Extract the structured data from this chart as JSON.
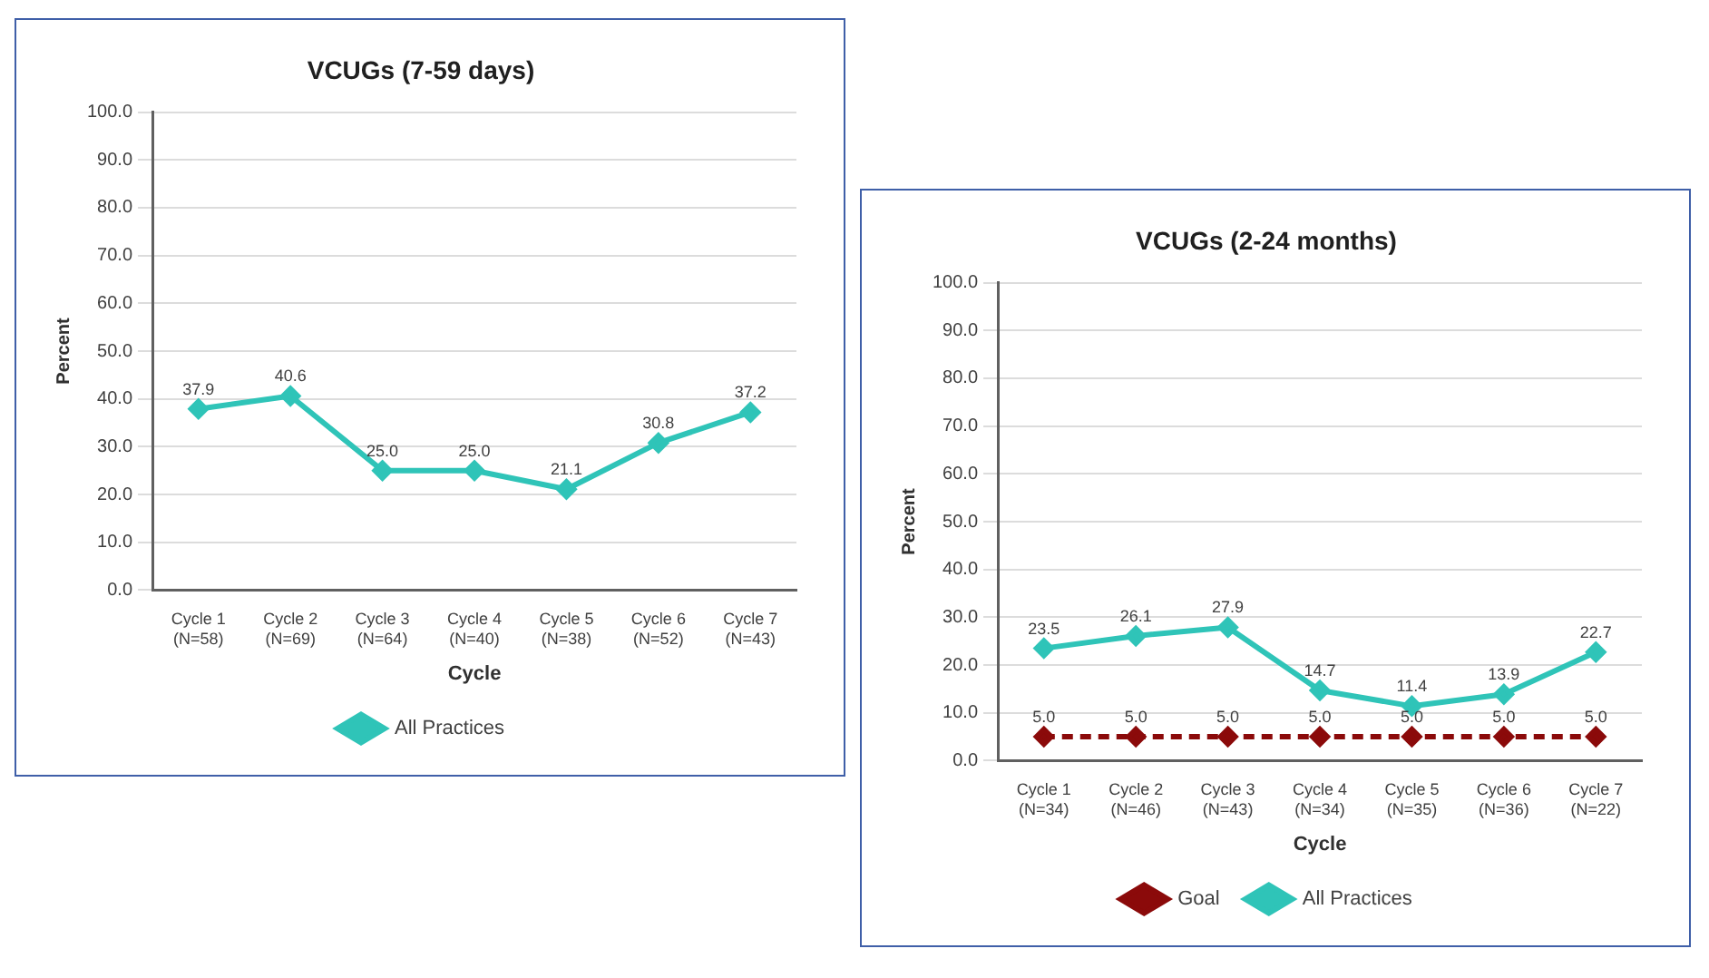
{
  "chart_data": [
    {
      "type": "line",
      "title": "VCUGs (7-59 days)",
      "xlabel": "Cycle",
      "ylabel": "Percent",
      "categories": [
        "Cycle 1\n(N=58)",
        "Cycle 2\n(N=69)",
        "Cycle 3\n(N=64)",
        "Cycle 4\n(N=40)",
        "Cycle 5\n(N=38)",
        "Cycle 6\n(N=52)",
        "Cycle 7\n(N=43)"
      ],
      "series": [
        {
          "name": "All Practices",
          "color": "#2fc4b8",
          "values": [
            37.9,
            40.6,
            25,
            25,
            21.1,
            30.8,
            37.2
          ],
          "value_labels": [
            "37.9",
            "40.6",
            "25.0",
            "25.0",
            "21.1",
            "30.8",
            "37.2"
          ],
          "line_style": "solid"
        }
      ],
      "ylim": [
        0,
        100
      ],
      "yticks": [
        {
          "value": 0,
          "label": "0.0"
        },
        {
          "value": 10,
          "label": "10.0"
        },
        {
          "value": 20,
          "label": "20.0"
        },
        {
          "value": 30,
          "label": "30.0"
        },
        {
          "value": 40,
          "label": "40.0"
        },
        {
          "value": 50,
          "label": "50.0"
        },
        {
          "value": 60,
          "label": "60.0"
        },
        {
          "value": 70,
          "label": "70.0"
        },
        {
          "value": 80,
          "label": "80.0"
        },
        {
          "value": 90,
          "label": "90.0"
        },
        {
          "value": 100,
          "label": "100.0"
        }
      ],
      "grid": "y",
      "legend": "bottom",
      "marker": "diamond"
    },
    {
      "type": "line",
      "title": "VCUGs (2-24 months)",
      "xlabel": "Cycle",
      "ylabel": "Percent",
      "categories": [
        "Cycle 1\n(N=34)",
        "Cycle 2\n(N=46)",
        "Cycle 3\n(N=43)",
        "Cycle 4\n(N=34)",
        "Cycle 5\n(N=35)",
        "Cycle 6\n(N=36)",
        "Cycle 7\n(N=22)"
      ],
      "series": [
        {
          "name": "Goal",
          "color": "#8b0a0a",
          "values": [
            5,
            5,
            5,
            5,
            5,
            5,
            5
          ],
          "value_labels": [
            "5.0",
            "5.0",
            "5.0",
            "5.0",
            "5.0",
            "5.0",
            "5.0"
          ],
          "line_style": "dashed"
        },
        {
          "name": "All Practices",
          "color": "#2fc4b8",
          "values": [
            23.5,
            26.1,
            27.9,
            14.7,
            11.4,
            13.9,
            22.7
          ],
          "value_labels": [
            "23.5",
            "26.1",
            "27.9",
            "14.7",
            "11.4",
            "13.9",
            "22.7"
          ],
          "line_style": "solid"
        }
      ],
      "ylim": [
        0,
        100
      ],
      "yticks": [
        {
          "value": 0,
          "label": "0.0"
        },
        {
          "value": 10,
          "label": "10.0"
        },
        {
          "value": 20,
          "label": "20.0"
        },
        {
          "value": 30,
          "label": "30.0"
        },
        {
          "value": 40,
          "label": "40.0"
        },
        {
          "value": 50,
          "label": "50.0"
        },
        {
          "value": 60,
          "label": "60.0"
        },
        {
          "value": 70,
          "label": "70.0"
        },
        {
          "value": 80,
          "label": "80.0"
        },
        {
          "value": 90,
          "label": "90.0"
        },
        {
          "value": 100,
          "label": "100.0"
        }
      ],
      "grid": "y",
      "legend": "bottom",
      "marker": "diamond"
    }
  ]
}
